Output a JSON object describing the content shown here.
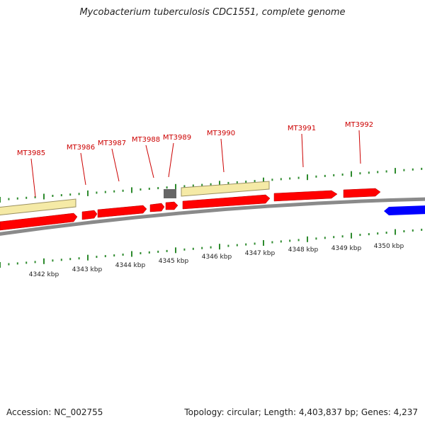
{
  "title": "Mycobacterium tuberculosis CDC1551, complete genome",
  "footer": {
    "accession": "Accession: NC_002755",
    "summary": "Topology: circular; Length: 4,403,837 bp; Genes: 4,237"
  },
  "colors": {
    "gene_forward": "#ff0000",
    "gene_reverse": "#0000ff",
    "feature_band": "#f5eaa6",
    "other_feature": "#666666",
    "backbone": "#8a8a8a",
    "ticks": "#2e8b2e",
    "gene_label": "#cc0000"
  },
  "scale_labels": [
    "4342 kbp",
    "4343 kbp",
    "4344 kbp",
    "4345 kbp",
    "4346 kbp",
    "4347 kbp",
    "4348 kbp",
    "4349 kbp",
    "4350 kbp"
  ],
  "gene_labels": [
    "MT3985",
    "MT3986",
    "MT3987",
    "MT3988",
    "MT3989",
    "MT3990",
    "MT3991",
    "MT3992"
  ]
}
